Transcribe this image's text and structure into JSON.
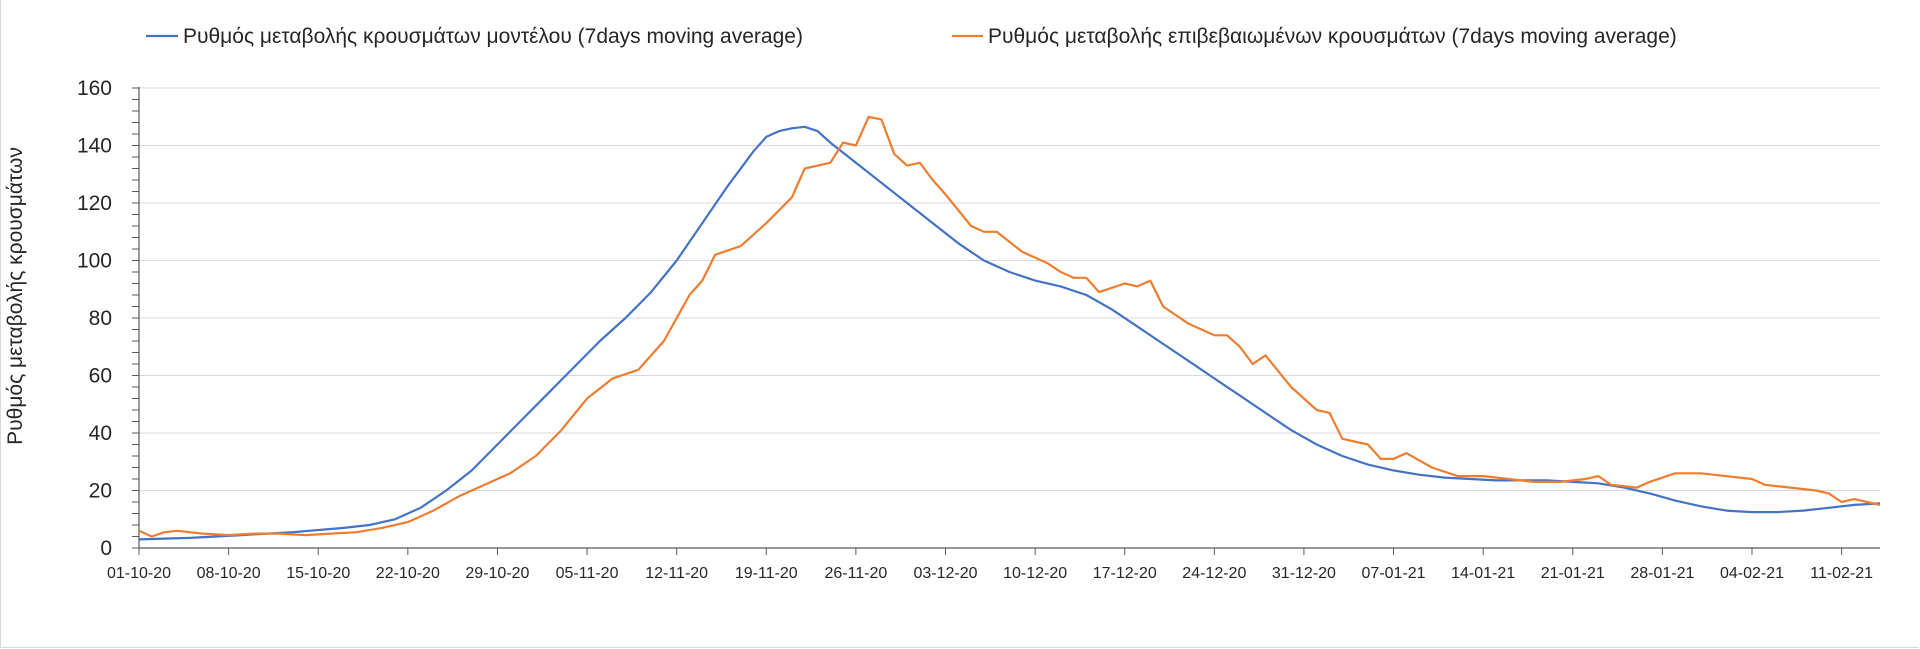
{
  "chart_data": {
    "type": "line",
    "ylabel": "Ρυθμός μεταβολής κρουσμάτων",
    "xlabel": "",
    "title": "",
    "ylim": [
      0,
      160
    ],
    "yticks": [
      0,
      20,
      40,
      60,
      80,
      100,
      120,
      140,
      160
    ],
    "x_range": [
      "2020-10-01",
      "2021-02-14"
    ],
    "x_tick_labels": [
      "01-10-20",
      "08-10-20",
      "15-10-20",
      "22-10-20",
      "29-10-20",
      "05-11-20",
      "12-11-20",
      "19-11-20",
      "26-11-20",
      "03-12-20",
      "10-12-20",
      "17-12-20",
      "24-12-20",
      "31-12-20",
      "07-01-21",
      "14-01-21",
      "21-01-21",
      "28-01-21",
      "04-02-21",
      "11-02-21"
    ],
    "grid": "horizontal",
    "legend_position": "top",
    "series": [
      {
        "name": "Ρυθμός μεταβολής κρουσμάτων μοντέλου (7days moving average)",
        "color": "#4472c4",
        "points": [
          [
            "2020-10-01",
            3
          ],
          [
            "2020-10-05",
            3.5
          ],
          [
            "2020-10-09",
            4.5
          ],
          [
            "2020-10-13",
            5.5
          ],
          [
            "2020-10-17",
            7
          ],
          [
            "2020-10-19",
            8
          ],
          [
            "2020-10-21",
            10
          ],
          [
            "2020-10-23",
            14
          ],
          [
            "2020-10-25",
            20
          ],
          [
            "2020-10-27",
            27
          ],
          [
            "2020-10-29",
            36
          ],
          [
            "2020-10-31",
            45
          ],
          [
            "2020-11-02",
            54
          ],
          [
            "2020-11-04",
            63
          ],
          [
            "2020-11-06",
            72
          ],
          [
            "2020-11-08",
            80
          ],
          [
            "2020-11-10",
            89
          ],
          [
            "2020-11-12",
            100
          ],
          [
            "2020-11-14",
            113
          ],
          [
            "2020-11-16",
            126
          ],
          [
            "2020-11-18",
            138
          ],
          [
            "2020-11-19",
            143
          ],
          [
            "2020-11-20",
            145
          ],
          [
            "2020-11-21",
            146
          ],
          [
            "2020-11-22",
            146.5
          ],
          [
            "2020-11-23",
            145
          ],
          [
            "2020-11-24",
            141
          ],
          [
            "2020-11-26",
            134
          ],
          [
            "2020-11-28",
            127
          ],
          [
            "2020-11-30",
            120
          ],
          [
            "2020-12-02",
            113
          ],
          [
            "2020-12-04",
            106
          ],
          [
            "2020-12-06",
            100
          ],
          [
            "2020-12-08",
            96
          ],
          [
            "2020-12-10",
            93
          ],
          [
            "2020-12-12",
            91
          ],
          [
            "2020-12-14",
            88
          ],
          [
            "2020-12-16",
            83
          ],
          [
            "2020-12-18",
            77
          ],
          [
            "2020-12-20",
            71
          ],
          [
            "2020-12-22",
            65
          ],
          [
            "2020-12-24",
            59
          ],
          [
            "2020-12-26",
            53
          ],
          [
            "2020-12-28",
            47
          ],
          [
            "2020-12-30",
            41
          ],
          [
            "2021-01-01",
            36
          ],
          [
            "2021-01-03",
            32
          ],
          [
            "2021-01-05",
            29
          ],
          [
            "2021-01-07",
            27
          ],
          [
            "2021-01-09",
            25.5
          ],
          [
            "2021-01-11",
            24.5
          ],
          [
            "2021-01-13",
            24
          ],
          [
            "2021-01-15",
            23.5
          ],
          [
            "2021-01-17",
            23.5
          ],
          [
            "2021-01-19",
            23.5
          ],
          [
            "2021-01-21",
            23
          ],
          [
            "2021-01-23",
            22.5
          ],
          [
            "2021-01-25",
            21
          ],
          [
            "2021-01-27",
            19
          ],
          [
            "2021-01-29",
            16.5
          ],
          [
            "2021-01-31",
            14.5
          ],
          [
            "2021-02-02",
            13
          ],
          [
            "2021-02-04",
            12.5
          ],
          [
            "2021-02-06",
            12.5
          ],
          [
            "2021-02-08",
            13
          ],
          [
            "2021-02-10",
            14
          ],
          [
            "2021-02-12",
            15
          ],
          [
            "2021-02-14",
            15.5
          ]
        ]
      },
      {
        "name": "Ρυθμός μεταβολής επιβεβαιωμένων κρουσμάτων (7days moving average)",
        "color": "#ed7d31",
        "points": [
          [
            "2020-10-01",
            6
          ],
          [
            "2020-10-02",
            4
          ],
          [
            "2020-10-03",
            5.5
          ],
          [
            "2020-10-04",
            6
          ],
          [
            "2020-10-06",
            5
          ],
          [
            "2020-10-08",
            4.5
          ],
          [
            "2020-10-10",
            5
          ],
          [
            "2020-10-12",
            5
          ],
          [
            "2020-10-14",
            4.5
          ],
          [
            "2020-10-16",
            5
          ],
          [
            "2020-10-18",
            5.5
          ],
          [
            "2020-10-20",
            7
          ],
          [
            "2020-10-22",
            9
          ],
          [
            "2020-10-24",
            13
          ],
          [
            "2020-10-26",
            18
          ],
          [
            "2020-10-28",
            22
          ],
          [
            "2020-10-30",
            26
          ],
          [
            "2020-11-01",
            32
          ],
          [
            "2020-11-03",
            41
          ],
          [
            "2020-11-05",
            52
          ],
          [
            "2020-11-07",
            59
          ],
          [
            "2020-11-09",
            62
          ],
          [
            "2020-11-11",
            72
          ],
          [
            "2020-11-13",
            88
          ],
          [
            "2020-11-14",
            93
          ],
          [
            "2020-11-15",
            102
          ],
          [
            "2020-11-17",
            105
          ],
          [
            "2020-11-19",
            113
          ],
          [
            "2020-11-21",
            122
          ],
          [
            "2020-11-22",
            132
          ],
          [
            "2020-11-24",
            134
          ],
          [
            "2020-11-25",
            141
          ],
          [
            "2020-11-26",
            140
          ],
          [
            "2020-11-27",
            150
          ],
          [
            "2020-11-28",
            149
          ],
          [
            "2020-11-29",
            137
          ],
          [
            "2020-11-30",
            133
          ],
          [
            "2020-12-01",
            134
          ],
          [
            "2020-12-02",
            128
          ],
          [
            "2020-12-03",
            123
          ],
          [
            "2020-12-05",
            112
          ],
          [
            "2020-12-06",
            110
          ],
          [
            "2020-12-07",
            110
          ],
          [
            "2020-12-09",
            103
          ],
          [
            "2020-12-11",
            99
          ],
          [
            "2020-12-12",
            96
          ],
          [
            "2020-12-13",
            94
          ],
          [
            "2020-12-14",
            94
          ],
          [
            "2020-12-15",
            89
          ],
          [
            "2020-12-17",
            92
          ],
          [
            "2020-12-18",
            91
          ],
          [
            "2020-12-19",
            93
          ],
          [
            "2020-12-20",
            84
          ],
          [
            "2020-12-22",
            78
          ],
          [
            "2020-12-24",
            74
          ],
          [
            "2020-12-25",
            74
          ],
          [
            "2020-12-26",
            70
          ],
          [
            "2020-12-27",
            64
          ],
          [
            "2020-12-28",
            67
          ],
          [
            "2020-12-30",
            56
          ],
          [
            "2021-01-01",
            48
          ],
          [
            "2021-01-02",
            47
          ],
          [
            "2021-01-03",
            38
          ],
          [
            "2021-01-05",
            36
          ],
          [
            "2021-01-06",
            31
          ],
          [
            "2021-01-07",
            31
          ],
          [
            "2021-01-08",
            33
          ],
          [
            "2021-01-10",
            28
          ],
          [
            "2021-01-12",
            25
          ],
          [
            "2021-01-14",
            25
          ],
          [
            "2021-01-16",
            24
          ],
          [
            "2021-01-18",
            23
          ],
          [
            "2021-01-20",
            23
          ],
          [
            "2021-01-22",
            24
          ],
          [
            "2021-01-23",
            25
          ],
          [
            "2021-01-24",
            22
          ],
          [
            "2021-01-26",
            21
          ],
          [
            "2021-01-27",
            23
          ],
          [
            "2021-01-29",
            26
          ],
          [
            "2021-01-31",
            26
          ],
          [
            "2021-02-02",
            25
          ],
          [
            "2021-02-04",
            24
          ],
          [
            "2021-02-05",
            22
          ],
          [
            "2021-02-07",
            21
          ],
          [
            "2021-02-09",
            20
          ],
          [
            "2021-02-10",
            19
          ],
          [
            "2021-02-11",
            16
          ],
          [
            "2021-02-12",
            17
          ],
          [
            "2021-02-13",
            16
          ],
          [
            "2021-02-14",
            15
          ]
        ]
      }
    ]
  }
}
